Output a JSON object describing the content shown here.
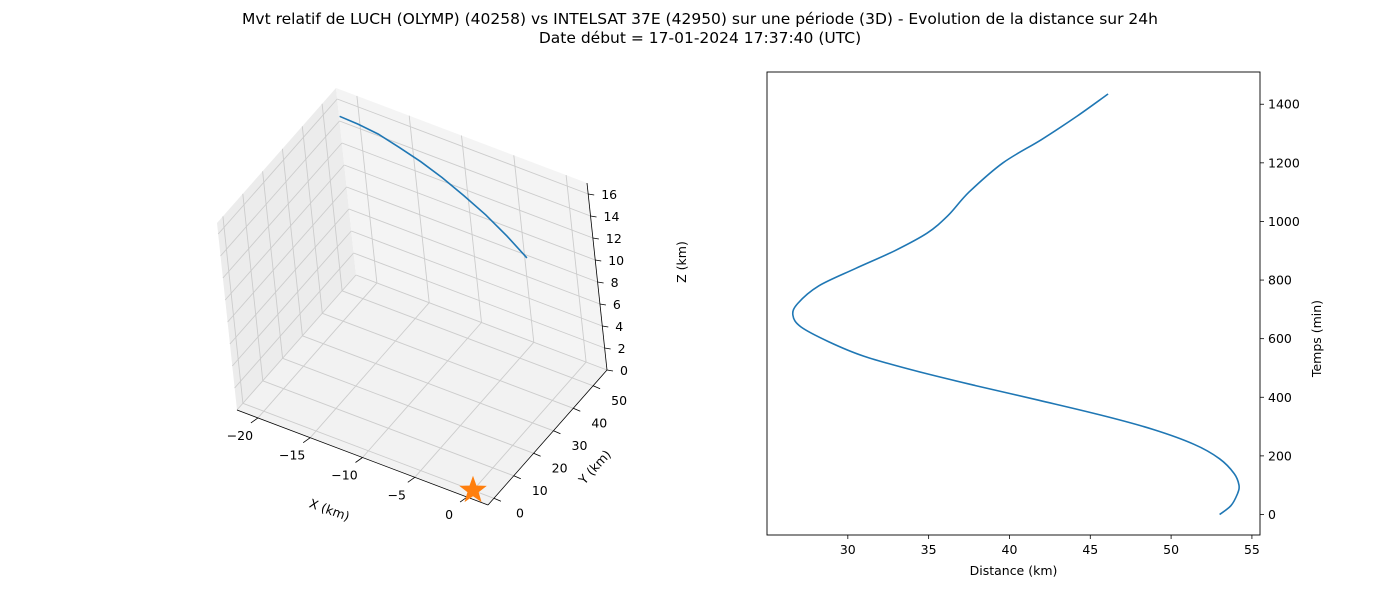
{
  "title_line1": "Mvt relatif de LUCH (OLYMP) (40258) vs INTELSAT 37E (42950) sur une période (3D) - Evolution de la distance sur 24h",
  "title_line2": "Date début = 17-01-2024 17:37:40 (UTC)",
  "chart_data": [
    {
      "type": "line3d",
      "xlabel": "X (km)",
      "ylabel": "Y (km)",
      "zlabel": "Z (km)",
      "x_ticks": [
        -20,
        -15,
        -10,
        -5,
        0
      ],
      "y_ticks": [
        0,
        10,
        20,
        30,
        40,
        50
      ],
      "z_ticks": [
        0,
        2,
        4,
        6,
        8,
        10,
        12,
        14,
        16
      ],
      "xlim": [
        -22,
        2
      ],
      "ylim": [
        -3,
        57
      ],
      "zlim": [
        0,
        17
      ],
      "series": [
        {
          "color": "#1f77b4",
          "points": [
            {
              "x": -20.5,
              "y": 50.5,
              "z": 16.3
            },
            {
              "x": -19.0,
              "y": 51.6,
              "z": 15.9
            },
            {
              "x": -17.3,
              "y": 52.6,
              "z": 15.4
            },
            {
              "x": -15.5,
              "y": 53.3,
              "z": 14.7
            },
            {
              "x": -13.6,
              "y": 53.7,
              "z": 14.0
            },
            {
              "x": -11.7,
              "y": 53.9,
              "z": 13.2
            },
            {
              "x": -9.7,
              "y": 53.8,
              "z": 12.3
            },
            {
              "x": -7.6,
              "y": 53.3,
              "z": 11.4
            },
            {
              "x": -5.5,
              "y": 52.4,
              "z": 10.4
            },
            {
              "x": -3.5,
              "y": 51.2,
              "z": 9.4
            }
          ]
        }
      ],
      "marker": {
        "shape": "star",
        "x": 0,
        "y": 0,
        "z": 0,
        "color": "#ff7f0e"
      },
      "grid": true
    },
    {
      "type": "line",
      "xlabel": "Distance (km)",
      "ylabel": "Temps (min)",
      "x_ticks": [
        30,
        35,
        40,
        45,
        50,
        55
      ],
      "y_ticks": [
        0,
        200,
        400,
        600,
        800,
        1000,
        1200,
        1400
      ],
      "xlim": [
        25.0,
        55.5
      ],
      "ylim": [
        -70,
        1510
      ],
      "series": [
        {
          "color": "#1f77b4",
          "x": [
            53.0,
            53.7,
            54.1,
            54.2,
            53.9,
            53.0,
            51.4,
            48.9,
            45.6,
            41.8,
            37.9,
            34.2,
            31.0,
            28.8,
            27.1,
            26.6,
            26.9,
            28.2,
            30.5,
            32.9,
            34.9,
            36.2,
            37.5,
            39.6,
            42.0,
            44.2,
            46.1
          ],
          "y": [
            0,
            30,
            70,
            100,
            140,
            190,
            240,
            290,
            340,
            390,
            440,
            490,
            540,
            590,
            640,
            680,
            720,
            780,
            840,
            900,
            960,
            1020,
            1100,
            1200,
            1280,
            1360,
            1435
          ]
        }
      ],
      "grid": false
    }
  ]
}
